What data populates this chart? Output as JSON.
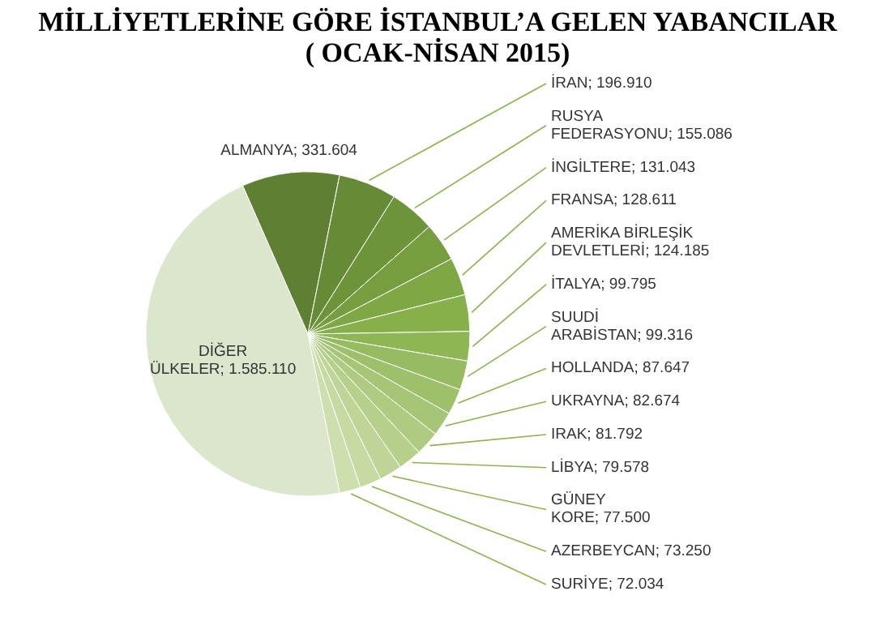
{
  "chart_data": {
    "type": "pie",
    "title": "MİLLİYETLERİNE GÖRE İSTANBUL’A GELEN YABANCILAR\n( OCAK-NİSAN 2015)",
    "categories": [
      "ALMANYA",
      "İRAN",
      "RUSYA FEDERASYONU",
      "İNGİLTERE",
      "FRANSA",
      "AMERİKA BİRLEŞİK DEVLETLERİ",
      "İTALYA",
      "SUUDİ ARABİSTAN",
      "HOLLANDA",
      "UKRAYNA",
      "IRAK",
      "LİBYA",
      "GÜNEY KORE",
      "AZERBEYCAN",
      "SURİYE",
      "DİĞER ÜLKELER"
    ],
    "values": [
      331604,
      196910,
      155086,
      131043,
      128611,
      124185,
      99795,
      99316,
      87647,
      82674,
      81792,
      79578,
      77500,
      73250,
      72034,
      1585110
    ],
    "value_labels": [
      "331.604",
      "196.910",
      "155.086",
      "131.043",
      "128.611",
      "124.185",
      "99.795",
      "99.316",
      "87.647",
      "82.674",
      "81.792",
      "79.578",
      "77.500",
      "73.250",
      "72.034",
      "1.585.110"
    ],
    "colors": [
      "#5f7f32",
      "#668a36",
      "#6e943a",
      "#769e3e",
      "#7ea843",
      "#86b04a",
      "#8eb655",
      "#96bb60",
      "#9ec06b",
      "#a6c676",
      "#aecb81",
      "#b6d08c",
      "#bed597",
      "#c6daa2",
      "#cedfae",
      "#dbe6cd"
    ]
  }
}
